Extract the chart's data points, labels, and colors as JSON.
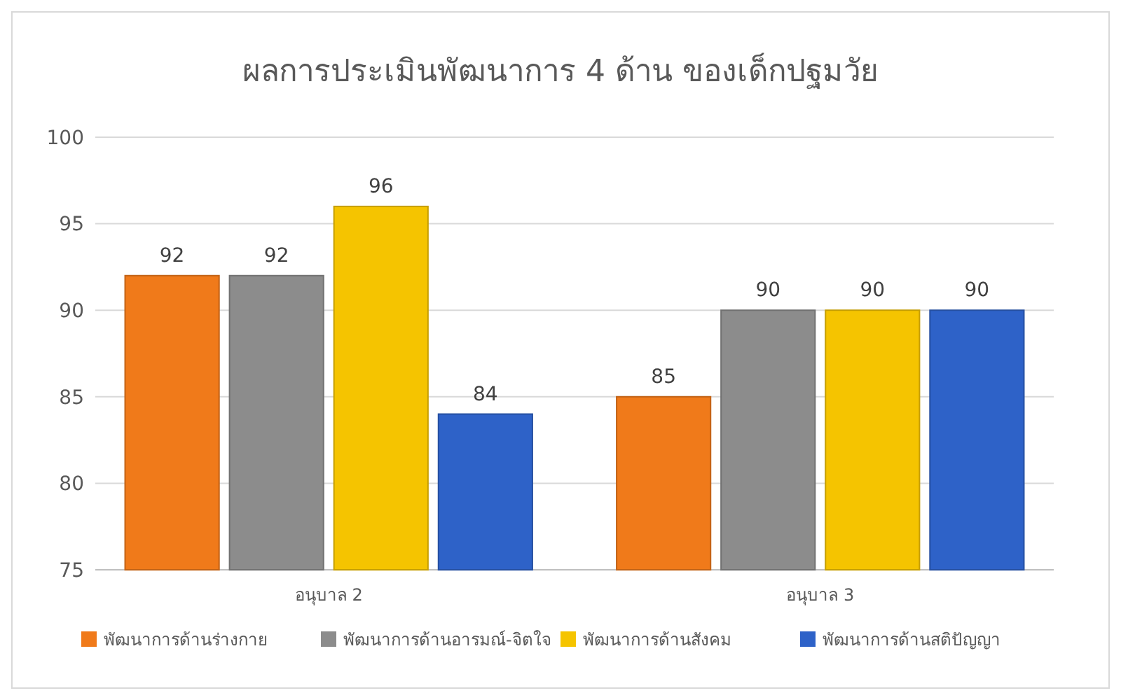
{
  "chart_data": {
    "type": "bar",
    "title": "ผลการประเมินพัฒนาการ 4 ด้าน ของเด็กปฐมวัย",
    "categories": [
      "อนุบาล 2",
      "อนุบาล 3"
    ],
    "series": [
      {
        "name": "พัฒนาการด้านร่างกาย",
        "color": "#f07a1a",
        "values": [
          92,
          85
        ]
      },
      {
        "name": "พัฒนาการด้านอารมณ์-จิตใจ",
        "color": "#8c8c8c",
        "values": [
          92,
          90
        ]
      },
      {
        "name": "พัฒนาการด้านสังคม",
        "color": "#f5c400",
        "values": [
          96,
          90
        ]
      },
      {
        "name": "พัฒนาการด้านสติปัญญา",
        "color": "#2e62c8",
        "values": [
          84,
          90
        ]
      }
    ],
    "ylim": [
      75,
      100
    ],
    "yticks": [
      75,
      80,
      85,
      90,
      95,
      100
    ],
    "grid": "y",
    "legend": "bottom",
    "data_labels": true
  }
}
